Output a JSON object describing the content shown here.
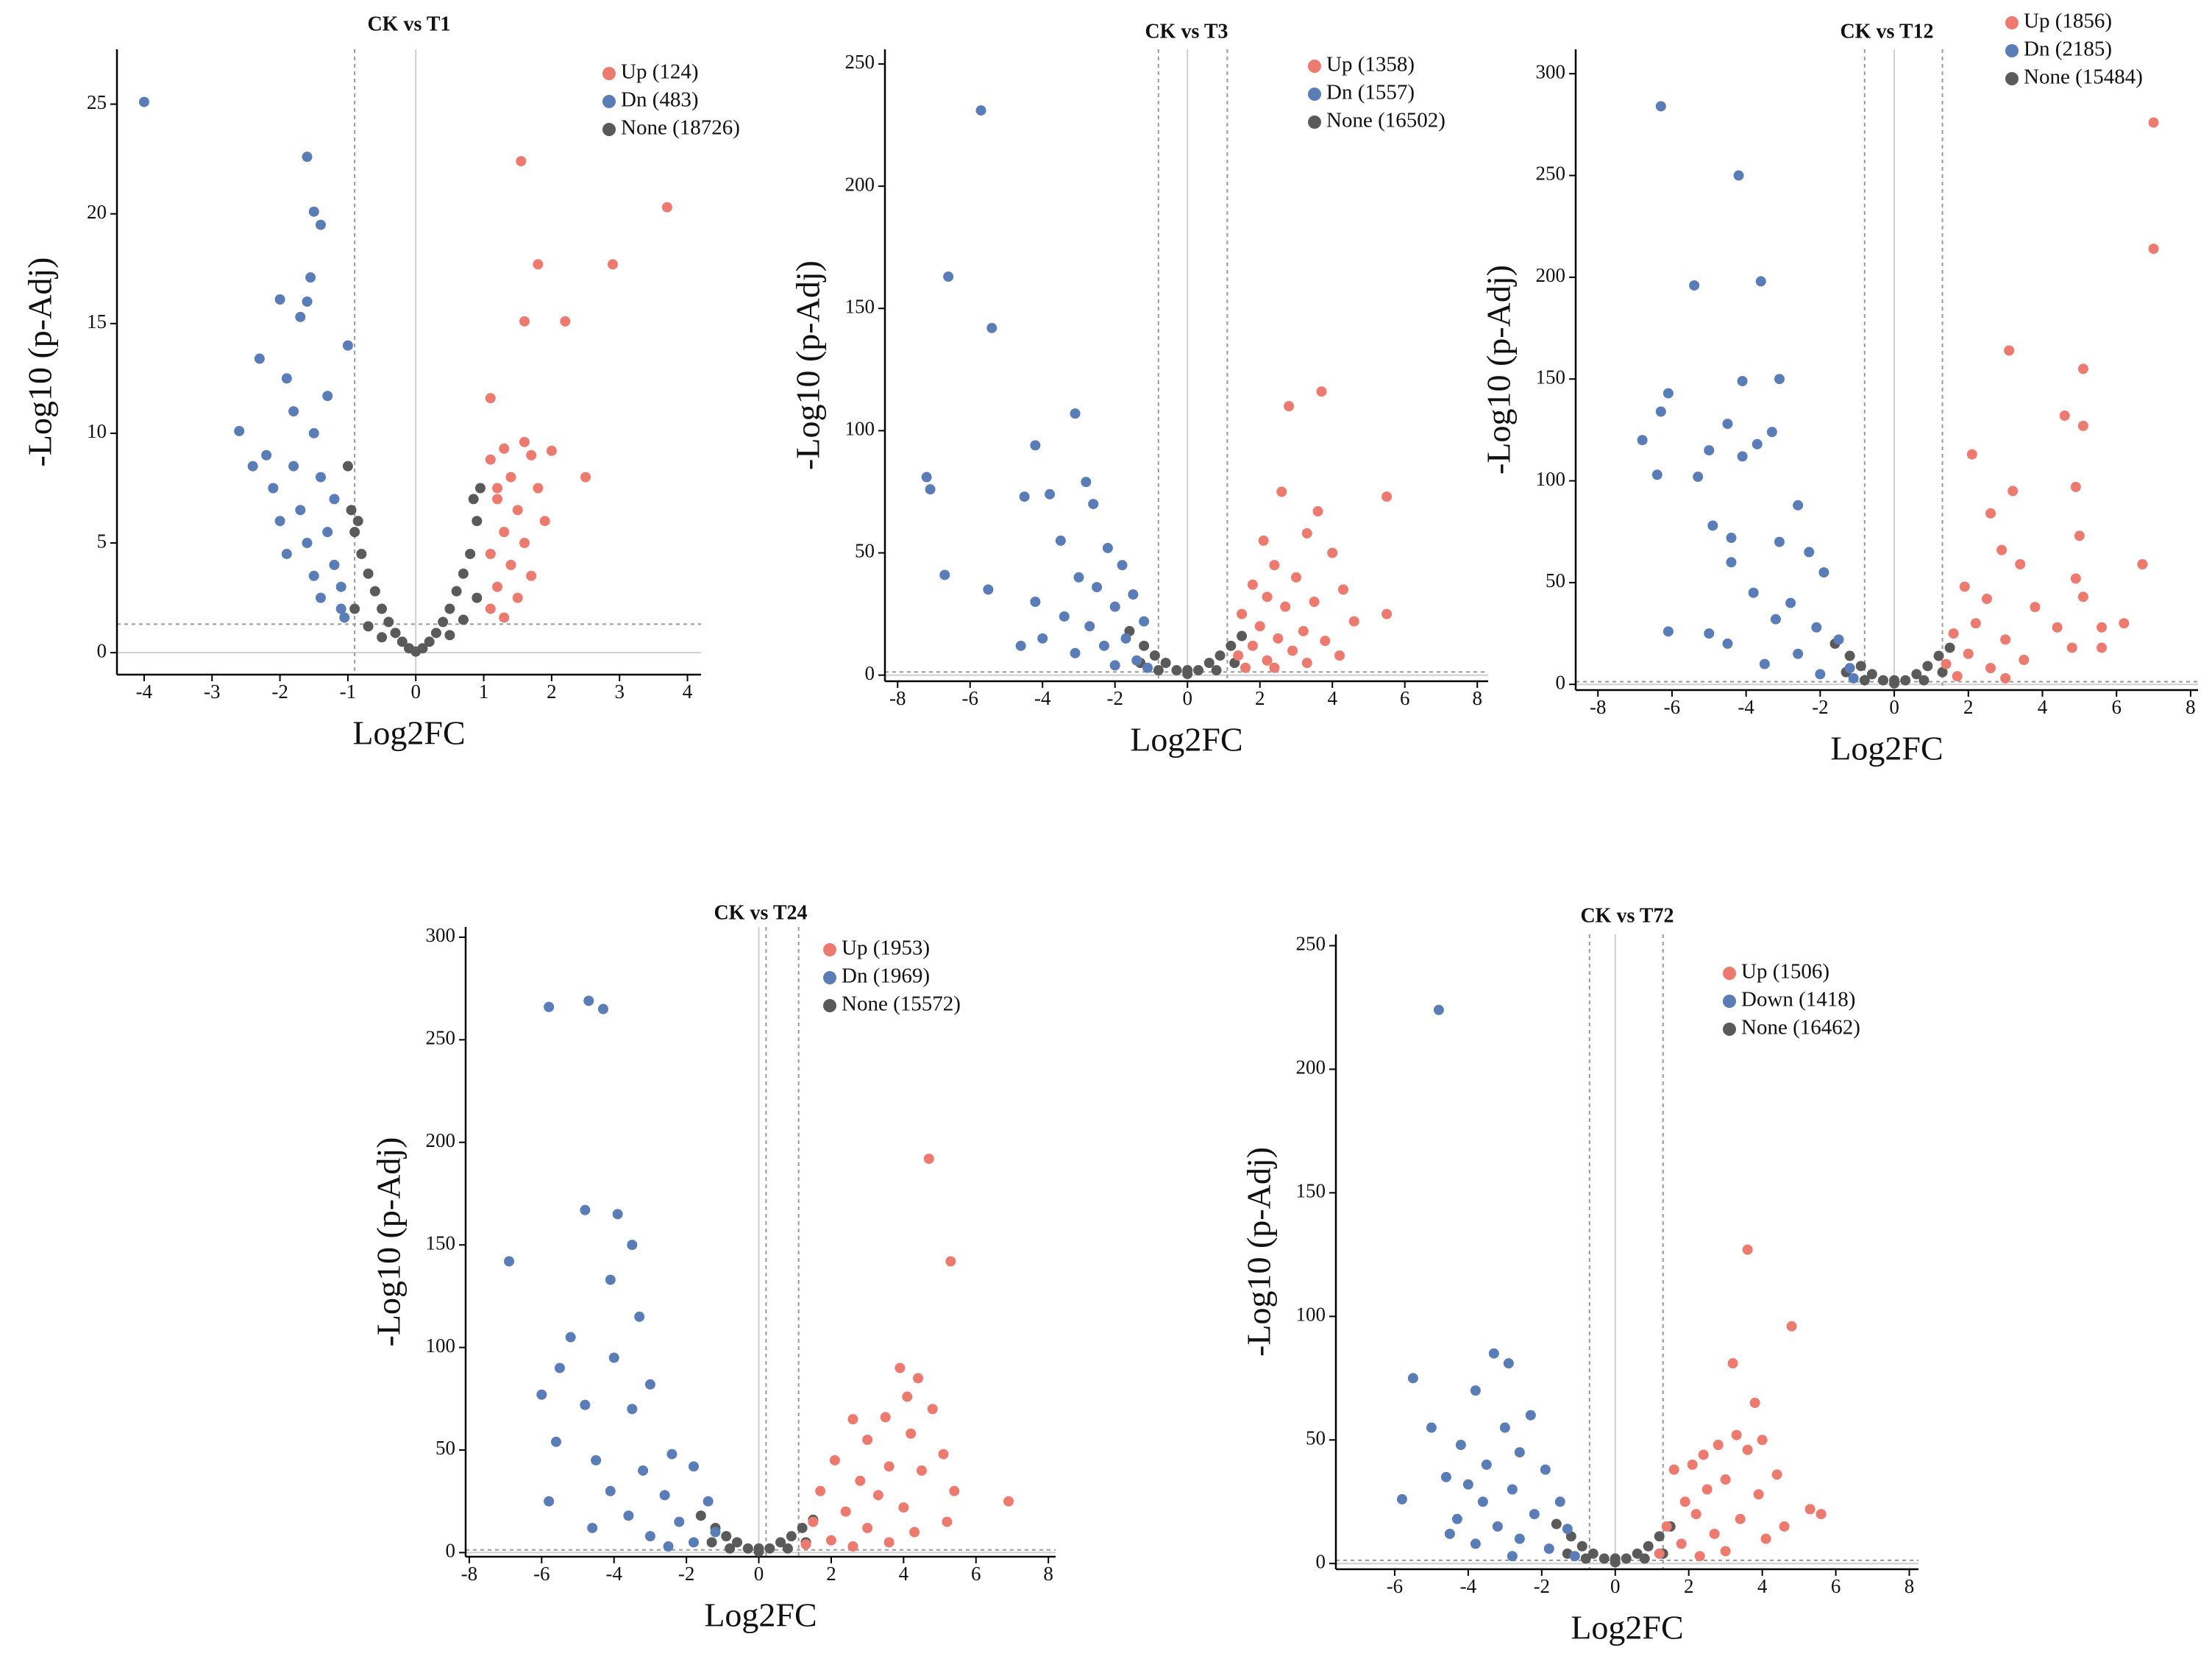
{
  "chart_data": [
    {
      "type": "scatter",
      "title": "CK vs T1",
      "x_label": "Log2FC",
      "y_label": "-Log10 (p-Adj)",
      "xlim": [
        -4.4,
        4.2
      ],
      "ylim": [
        -1,
        27.5
      ],
      "xticks": [
        -4,
        -3,
        -2,
        -1,
        0,
        1,
        2,
        3,
        4
      ],
      "yticks": [
        0,
        5,
        10,
        15,
        20,
        25
      ],
      "vlines": [
        -0.9
      ],
      "hline": 1.3,
      "legend": "upper right",
      "series": [
        {
          "name": "Up (124)",
          "color": "#ec7a6e",
          "x": [
            1.55,
            3.7,
            1.8,
            2.9,
            1.6,
            2.2,
            1.1,
            2.0,
            2.5,
            1.3,
            1.6,
            1.1,
            1.4,
            1.8,
            1.2,
            1.5,
            1.9,
            1.3,
            1.6,
            1.1,
            1.4,
            1.7,
            1.2,
            1.5,
            1.1,
            1.3,
            1.2,
            1.7
          ],
          "y": [
            22.4,
            20.3,
            17.7,
            17.7,
            15.1,
            15.1,
            11.6,
            9.2,
            8.0,
            9.3,
            9.6,
            8.8,
            8.0,
            7.5,
            7.0,
            6.5,
            6.0,
            5.5,
            5.0,
            4.5,
            4.0,
            3.5,
            3.0,
            2.5,
            2.0,
            1.6,
            7.5,
            9.0
          ]
        },
        {
          "name": "Dn (483)",
          "color": "#5a7db8",
          "x": [
            -4.0,
            -1.6,
            -1.5,
            -1.4,
            -1.55,
            -2.0,
            -1.6,
            -1.7,
            -1.0,
            -2.3,
            -1.3,
            -2.6,
            -1.9,
            -2.2,
            -1.5,
            -1.8,
            -2.1,
            -1.4,
            -1.2,
            -1.7,
            -2.0,
            -1.3,
            -1.6,
            -1.9,
            -1.2,
            -1.5,
            -1.1,
            -1.4,
            -1.1,
            -2.4,
            -1.8,
            -1.05
          ],
          "y": [
            25.1,
            22.6,
            20.1,
            19.5,
            17.1,
            16.1,
            16.0,
            15.3,
            14.0,
            13.4,
            11.7,
            10.1,
            12.5,
            9.0,
            10.0,
            8.5,
            7.5,
            8.0,
            7.0,
            6.5,
            6.0,
            5.5,
            5.0,
            4.5,
            4.0,
            3.5,
            3.0,
            2.5,
            2.0,
            8.5,
            11.0,
            1.6
          ]
        },
        {
          "name": "None (18726)",
          "color": "#5a5a5a",
          "x": [
            -0.95,
            -0.9,
            -0.8,
            -0.7,
            -0.6,
            -0.5,
            -0.4,
            -0.3,
            -0.2,
            -0.1,
            0,
            0.1,
            0.2,
            0.3,
            0.4,
            0.5,
            0.6,
            0.7,
            0.8,
            0.9,
            0.95,
            -0.9,
            -0.7,
            0.7,
            0.9,
            -1.0,
            0.5,
            -0.5,
            0.85,
            -0.85
          ],
          "y": [
            6.5,
            5.5,
            4.5,
            3.6,
            2.8,
            2.0,
            1.4,
            0.9,
            0.5,
            0.2,
            0.05,
            0.2,
            0.5,
            0.9,
            1.4,
            2.0,
            2.8,
            3.6,
            4.5,
            6.0,
            7.5,
            2.0,
            1.2,
            1.5,
            2.5,
            8.5,
            0.8,
            0.7,
            7.0,
            6.0
          ]
        }
      ]
    },
    {
      "type": "scatter",
      "title": "CK vs T3",
      "x_label": "Log2FC",
      "y_label": "-Log10 (p-Adj)",
      "xlim": [
        -8.35,
        8.3
      ],
      "ylim": [
        -2.5,
        256
      ],
      "xticks": [
        -8,
        -6,
        -4,
        -2,
        0,
        2,
        4,
        6,
        8
      ],
      "yticks": [
        0,
        50,
        100,
        150,
        200,
        250
      ],
      "vlines": [
        -0.8,
        1.1
      ],
      "hline": 1.3,
      "legend": "upper right",
      "series": [
        {
          "name": "Up (1358)",
          "color": "#ec7a6e",
          "x": [
            3.7,
            2.8,
            2.6,
            3.6,
            5.5,
            3.3,
            2.1,
            4.0,
            2.4,
            3.0,
            4.3,
            1.8,
            2.2,
            3.5,
            2.7,
            5.5,
            4.6,
            1.5,
            2.0,
            3.2,
            2.5,
            1.8,
            3.8,
            1.4,
            2.2,
            2.9,
            4.2,
            1.6,
            2.4,
            3.3
          ],
          "y": [
            116,
            110,
            75,
            67,
            73,
            58,
            55,
            50,
            45,
            40,
            35,
            37,
            32,
            30,
            28,
            25,
            22,
            25,
            20,
            18,
            15,
            12,
            14,
            8,
            6,
            10,
            8,
            3,
            3,
            5
          ]
        },
        {
          "name": "Dn (1557)",
          "color": "#5a7db8",
          "x": [
            -5.7,
            -6.6,
            -5.4,
            -3.1,
            -7.2,
            -7.1,
            -4.2,
            -3.8,
            -4.5,
            -2.8,
            -2.6,
            -6.7,
            -5.5,
            -3.5,
            -2.2,
            -1.8,
            -3.0,
            -2.5,
            -4.2,
            -1.5,
            -2.0,
            -3.4,
            -1.2,
            -2.7,
            -4.0,
            -1.7,
            -2.3,
            -3.1,
            -1.4,
            -2.0,
            -1.1,
            -4.6
          ],
          "y": [
            231,
            163,
            142,
            107,
            81,
            76,
            94,
            74,
            73,
            79,
            70,
            41,
            35,
            55,
            52,
            45,
            40,
            36,
            30,
            33,
            28,
            24,
            22,
            20,
            15,
            15,
            12,
            9,
            6,
            4,
            3,
            12
          ]
        },
        {
          "name": "None (16502)",
          "color": "#5a5a5a",
          "x": [
            -1.6,
            -1.2,
            -0.9,
            -0.6,
            -0.3,
            0,
            0.3,
            0.6,
            0.9,
            1.2,
            1.5,
            -1.3,
            -0.8,
            0.8,
            1.3,
            0
          ],
          "y": [
            18,
            12,
            8,
            5,
            2,
            0.5,
            2,
            5,
            8,
            12,
            16,
            5,
            2,
            2,
            5,
            2
          ]
        }
      ]
    },
    {
      "type": "scatter",
      "title": "CK vs T12",
      "x_label": "Log2FC",
      "y_label": "-Log10 (p-Adj)",
      "xlim": [
        -8.6,
        8.2
      ],
      "ylim": [
        -2.8,
        312
      ],
      "xticks": [
        -8,
        -6,
        -4,
        -2,
        0,
        2,
        4,
        6,
        8
      ],
      "yticks": [
        0,
        50,
        100,
        150,
        200,
        250,
        300
      ],
      "vlines": [
        -0.8,
        1.3
      ],
      "hline": 1.3,
      "legend": "upper right",
      "series": [
        {
          "name": "Up (1856)",
          "color": "#ec7a6e",
          "x": [
            7.0,
            7.0,
            3.1,
            5.1,
            4.6,
            5.1,
            2.1,
            3.2,
            4.9,
            2.6,
            5.0,
            2.9,
            3.4,
            4.9,
            6.7,
            5.1,
            1.9,
            2.5,
            3.8,
            5.6,
            6.2,
            4.4,
            2.2,
            1.6,
            3.0,
            4.8,
            5.6,
            2.0,
            3.5,
            1.4,
            2.6,
            1.7,
            3.0
          ],
          "y": [
            276,
            214,
            164,
            155,
            132,
            127,
            113,
            95,
            97,
            84,
            73,
            66,
            59,
            52,
            59,
            43,
            48,
            42,
            38,
            28,
            30,
            28,
            30,
            25,
            22,
            18,
            18,
            15,
            12,
            10,
            8,
            4,
            3
          ]
        },
        {
          "name": "Dn (2185)",
          "color": "#5a7db8",
          "x": [
            -6.3,
            -4.2,
            -5.4,
            -3.6,
            -4.1,
            -3.1,
            -6.1,
            -6.3,
            -6.8,
            -4.5,
            -6.4,
            -5.0,
            -4.1,
            -3.3,
            -3.7,
            -5.3,
            -2.6,
            -4.9,
            -4.4,
            -3.1,
            -2.3,
            -4.4,
            -6.1,
            -5.0,
            -4.5,
            -3.8,
            -2.8,
            -1.9,
            -3.2,
            -2.1,
            -1.5,
            -2.6,
            -3.5,
            -1.2,
            -2.0,
            -1.1
          ],
          "y": [
            284,
            250,
            196,
            198,
            149,
            150,
            143,
            134,
            120,
            128,
            103,
            115,
            112,
            124,
            118,
            102,
            88,
            78,
            72,
            70,
            65,
            60,
            26,
            25,
            20,
            45,
            40,
            55,
            32,
            28,
            22,
            15,
            10,
            8,
            5,
            3
          ]
        },
        {
          "name": "None (15484)",
          "color": "#5a5a5a",
          "x": [
            -1.6,
            -1.2,
            -0.9,
            -0.6,
            -0.3,
            0,
            0.3,
            0.6,
            0.9,
            1.2,
            1.5,
            -1.3,
            -0.8,
            0.8,
            1.3,
            0
          ],
          "y": [
            20,
            14,
            9,
            5,
            2,
            0.5,
            2,
            5,
            9,
            14,
            18,
            6,
            2,
            2,
            6,
            2
          ]
        }
      ]
    },
    {
      "type": "scatter",
      "title": "CK vs T24",
      "x_label": "Log2FC",
      "y_label": "-Log10 (p-Adj)",
      "xlim": [
        -8.1,
        8.2
      ],
      "ylim": [
        -2,
        305
      ],
      "xticks": [
        -8,
        -6,
        -4,
        -2,
        0,
        2,
        4,
        6,
        8
      ],
      "yticks": [
        0,
        50,
        100,
        150,
        200,
        250,
        300
      ],
      "vlines": [
        0.2,
        1.1
      ],
      "hline": 1.3,
      "legend": "upper right",
      "series": [
        {
          "name": "Up (1953)",
          "color": "#ec7a6e",
          "x": [
            4.7,
            5.3,
            6.9,
            3.9,
            4.4,
            4.1,
            3.5,
            2.6,
            4.8,
            3.0,
            4.2,
            5.1,
            2.1,
            3.6,
            4.5,
            2.8,
            5.4,
            1.7,
            3.3,
            4.0,
            2.4,
            5.2,
            1.5,
            3.0,
            4.3,
            2.0,
            1.3,
            3.6,
            2.6
          ],
          "y": [
            192,
            142,
            25,
            90,
            85,
            76,
            66,
            65,
            70,
            55,
            58,
            48,
            45,
            42,
            40,
            35,
            30,
            30,
            28,
            22,
            20,
            15,
            15,
            12,
            10,
            6,
            4,
            5,
            3
          ]
        },
        {
          "name": "Dn (1969)",
          "color": "#5a7db8",
          "x": [
            -4.7,
            -4.3,
            -5.8,
            -4.8,
            -3.9,
            -6.9,
            -3.5,
            -4.1,
            -3.3,
            -5.2,
            -5.5,
            -4.0,
            -3.0,
            -6.0,
            -5.6,
            -4.8,
            -3.5,
            -5.8,
            -4.5,
            -2.4,
            -3.2,
            -1.8,
            -4.1,
            -2.6,
            -1.4,
            -3.6,
            -2.2,
            -4.6,
            -1.2,
            -3.0,
            -1.8,
            -2.5
          ],
          "y": [
            269,
            265,
            266,
            167,
            165,
            142,
            150,
            133,
            115,
            105,
            90,
            95,
            82,
            77,
            54,
            72,
            70,
            25,
            45,
            48,
            40,
            42,
            30,
            28,
            25,
            18,
            15,
            12,
            10,
            8,
            5,
            3
          ]
        },
        {
          "name": "None (15572)",
          "color": "#5a5a5a",
          "x": [
            -1.6,
            -1.2,
            -0.9,
            -0.6,
            -0.3,
            0,
            0.3,
            0.6,
            0.9,
            1.2,
            1.5,
            -1.3,
            -0.8,
            0.8,
            1.3,
            0
          ],
          "y": [
            18,
            12,
            8,
            5,
            2,
            0.5,
            2,
            5,
            8,
            12,
            16,
            5,
            2,
            2,
            5,
            2
          ]
        }
      ]
    },
    {
      "type": "scatter",
      "title": "CK vs T72",
      "x_label": "Log2FC",
      "y_label": "-Log10 (p-Adj)",
      "xlim": [
        -7.6,
        8.25
      ],
      "ylim": [
        -2.3,
        254.6
      ],
      "xticks": [
        -6,
        -4,
        -2,
        0,
        2,
        4,
        6,
        8
      ],
      "yticks": [
        0,
        50,
        100,
        150,
        200,
        250
      ],
      "vlines": [
        -0.7,
        1.3
      ],
      "hline": 1.3,
      "legend": "upper right",
      "series": [
        {
          "name": "Up (1506)",
          "color": "#ec7a6e",
          "x": [
            3.6,
            4.8,
            3.2,
            3.8,
            4.0,
            2.4,
            5.6,
            5.3,
            3.3,
            2.8,
            3.6,
            2.1,
            4.4,
            3.0,
            1.6,
            2.5,
            3.9,
            1.9,
            4.6,
            2.2,
            3.4,
            1.4,
            2.7,
            4.1,
            1.8,
            1.2,
            3.0,
            2.3
          ],
          "y": [
            127,
            96,
            81,
            65,
            50,
            44,
            20,
            22,
            52,
            48,
            46,
            40,
            36,
            34,
            38,
            30,
            28,
            25,
            15,
            20,
            18,
            15,
            12,
            10,
            8,
            4,
            5,
            3
          ]
        },
        {
          "name": "Down (1418)",
          "color": "#5a7db8",
          "x": [
            -4.8,
            -3.3,
            -2.9,
            -5.5,
            -3.8,
            -5.0,
            -2.3,
            -3.0,
            -4.2,
            -2.6,
            -3.5,
            -4.6,
            -5.8,
            -4.0,
            -1.9,
            -2.8,
            -3.6,
            -1.5,
            -4.3,
            -2.2,
            -3.2,
            -1.3,
            -2.6,
            -3.8,
            -1.8,
            -1.1,
            -2.8,
            -4.5
          ],
          "y": [
            224,
            85,
            81,
            75,
            70,
            55,
            60,
            55,
            48,
            45,
            40,
            35,
            26,
            32,
            38,
            30,
            25,
            25,
            18,
            20,
            15,
            14,
            10,
            8,
            6,
            3,
            3,
            12
          ]
        },
        {
          "name": "None (16462)",
          "color": "#5a5a5a",
          "x": [
            -1.6,
            -1.2,
            -0.9,
            -0.6,
            -0.3,
            0,
            0.3,
            0.6,
            0.9,
            1.2,
            1.5,
            -1.3,
            -0.8,
            0.8,
            1.3,
            0
          ],
          "y": [
            16,
            11,
            7,
            4,
            2,
            0.5,
            2,
            4,
            7,
            11,
            15,
            4,
            2,
            2,
            4,
            2
          ]
        }
      ]
    }
  ]
}
